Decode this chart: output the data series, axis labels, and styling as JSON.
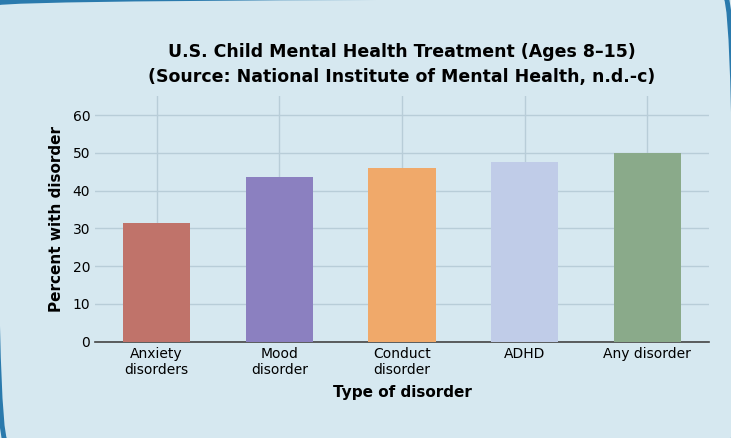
{
  "title": "U.S. Child Mental Health Treatment (Ages 8–15)\n(Source: National Institute of Mental Health, n.d.-c)",
  "xlabel": "Type of disorder",
  "ylabel": "Percent with disorder",
  "categories": [
    "Anxiety\ndisorders",
    "Mood\ndisorder",
    "Conduct\ndisorder",
    "ADHD",
    "Any disorder"
  ],
  "values": [
    31.5,
    43.5,
    46.0,
    47.5,
    50.0
  ],
  "bar_colors": [
    "#c0736a",
    "#8b80c0",
    "#f0a96a",
    "#c0cce8",
    "#8aaa8a"
  ],
  "ylim": [
    0,
    65
  ],
  "yticks": [
    0,
    10,
    20,
    30,
    40,
    50,
    60
  ],
  "background_color": "#d6e8f0",
  "grid_color": "#b8cdd8",
  "border_color": "#2a7aad",
  "title_fontsize": 12.5,
  "axis_label_fontsize": 11,
  "tick_fontsize": 10
}
